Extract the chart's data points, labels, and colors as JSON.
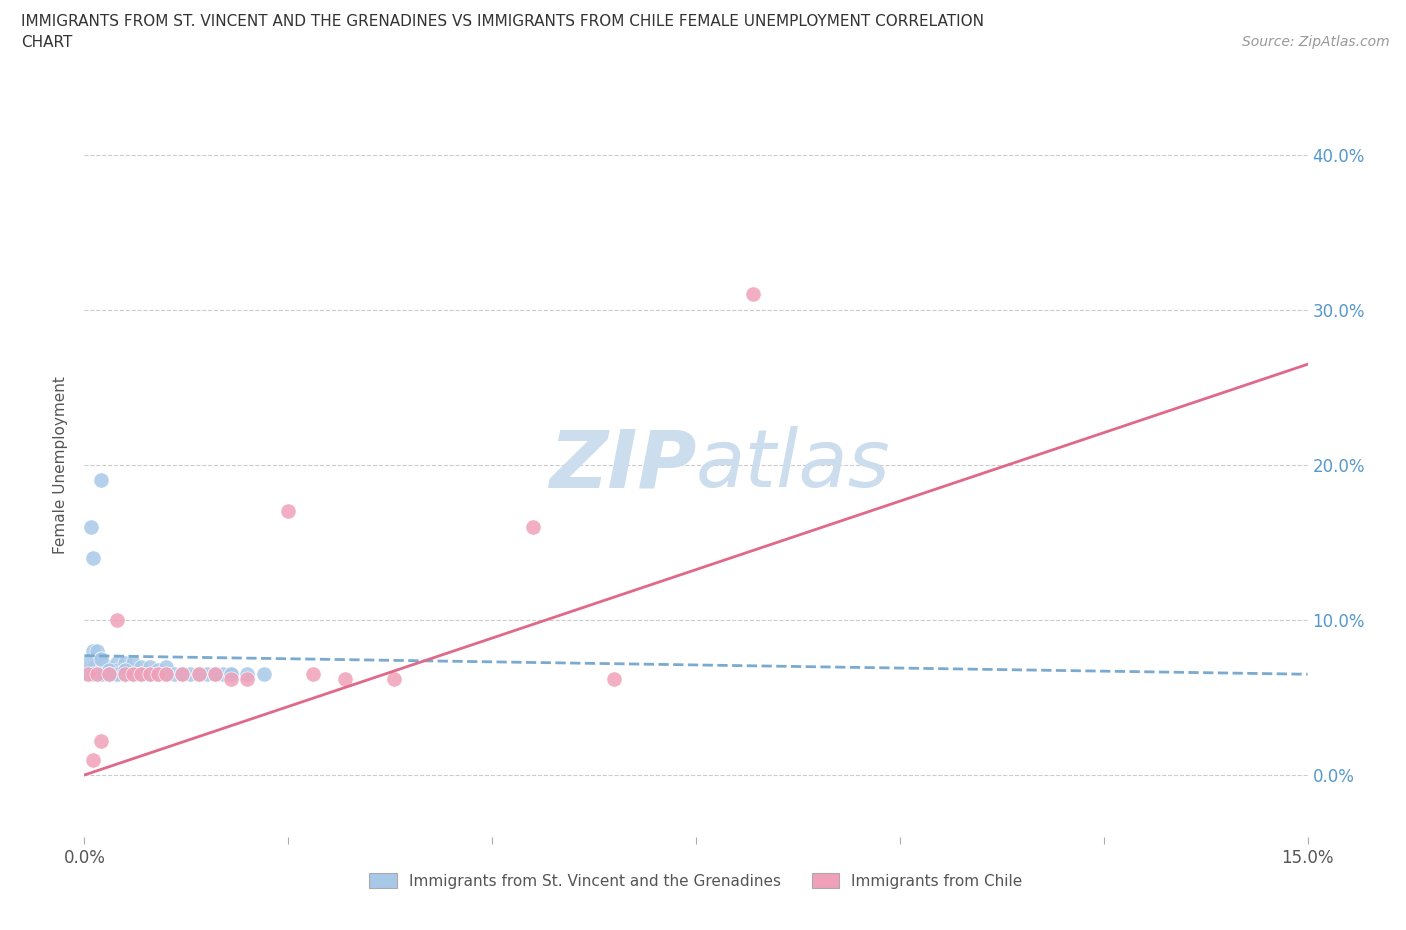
{
  "title_line1": "IMMIGRANTS FROM ST. VINCENT AND THE GRENADINES VS IMMIGRANTS FROM CHILE FEMALE UNEMPLOYMENT CORRELATION",
  "title_line2": "CHART",
  "source_text": "Source: ZipAtlas.com",
  "xlabel_left": "Immigrants from St. Vincent and the Grenadines",
  "xlabel_right": "Immigrants from Chile",
  "ylabel": "Female Unemployment",
  "xlim": [
    0.0,
    0.15
  ],
  "ylim": [
    -0.04,
    0.44
  ],
  "ytick_vals": [
    0.0,
    0.1,
    0.2,
    0.3,
    0.4
  ],
  "ytick_labels_right": [
    "0.0%",
    "10.0%",
    "20.0%",
    "30.0%",
    "40.0%"
  ],
  "color_blue": "#a8c8e8",
  "color_pink": "#f0a0b8",
  "line_blue": "#7aaacf",
  "line_pink": "#e06888",
  "watermark_color": "#ccdded",
  "blue_scatter_x": [
    0.0005,
    0.0008,
    0.001,
    0.001,
    0.0012,
    0.0015,
    0.0015,
    0.002,
    0.002,
    0.002,
    0.0022,
    0.0025,
    0.003,
    0.003,
    0.003,
    0.003,
    0.0035,
    0.004,
    0.004,
    0.004,
    0.0045,
    0.005,
    0.005,
    0.005,
    0.006,
    0.006,
    0.006,
    0.007,
    0.007,
    0.007,
    0.008,
    0.008,
    0.009,
    0.009,
    0.01,
    0.01,
    0.011,
    0.012,
    0.013,
    0.014,
    0.015,
    0.016,
    0.017,
    0.018,
    0.02,
    0.022,
    0.0005,
    0.001,
    0.001,
    0.0015,
    0.002,
    0.002,
    0.003,
    0.003,
    0.004,
    0.005,
    0.005,
    0.006,
    0.007,
    0.008,
    0.009,
    0.01,
    0.012,
    0.014,
    0.016,
    0.018,
    0.002,
    0.003
  ],
  "blue_scatter_y": [
    0.065,
    0.16,
    0.08,
    0.065,
    0.07,
    0.065,
    0.08,
    0.065,
    0.072,
    0.075,
    0.065,
    0.065,
    0.065,
    0.07,
    0.065,
    0.065,
    0.065,
    0.065,
    0.072,
    0.068,
    0.065,
    0.065,
    0.072,
    0.068,
    0.065,
    0.072,
    0.065,
    0.065,
    0.07,
    0.065,
    0.065,
    0.07,
    0.065,
    0.068,
    0.065,
    0.07,
    0.065,
    0.065,
    0.065,
    0.065,
    0.065,
    0.065,
    0.065,
    0.065,
    0.065,
    0.065,
    0.072,
    0.065,
    0.14,
    0.065,
    0.065,
    0.075,
    0.065,
    0.068,
    0.065,
    0.065,
    0.068,
    0.065,
    0.065,
    0.065,
    0.065,
    0.065,
    0.065,
    0.065,
    0.065,
    0.065,
    0.19,
    0.065
  ],
  "pink_scatter_x": [
    0.0005,
    0.001,
    0.0015,
    0.002,
    0.003,
    0.004,
    0.005,
    0.006,
    0.007,
    0.008,
    0.009,
    0.01,
    0.012,
    0.014,
    0.016,
    0.018,
    0.02,
    0.025,
    0.028,
    0.032,
    0.038,
    0.055,
    0.065,
    0.082
  ],
  "pink_scatter_y": [
    0.065,
    0.01,
    0.065,
    0.022,
    0.065,
    0.1,
    0.065,
    0.065,
    0.065,
    0.065,
    0.065,
    0.065,
    0.065,
    0.065,
    0.065,
    0.062,
    0.062,
    0.17,
    0.065,
    0.062,
    0.062,
    0.16,
    0.062,
    0.31
  ],
  "blue_line_x0": 0.0,
  "blue_line_x1": 0.15,
  "blue_line_y0": 0.077,
  "blue_line_y1": 0.065,
  "pink_line_x0": 0.0,
  "pink_line_x1": 0.15,
  "pink_line_y0": 0.0,
  "pink_line_y1": 0.265
}
